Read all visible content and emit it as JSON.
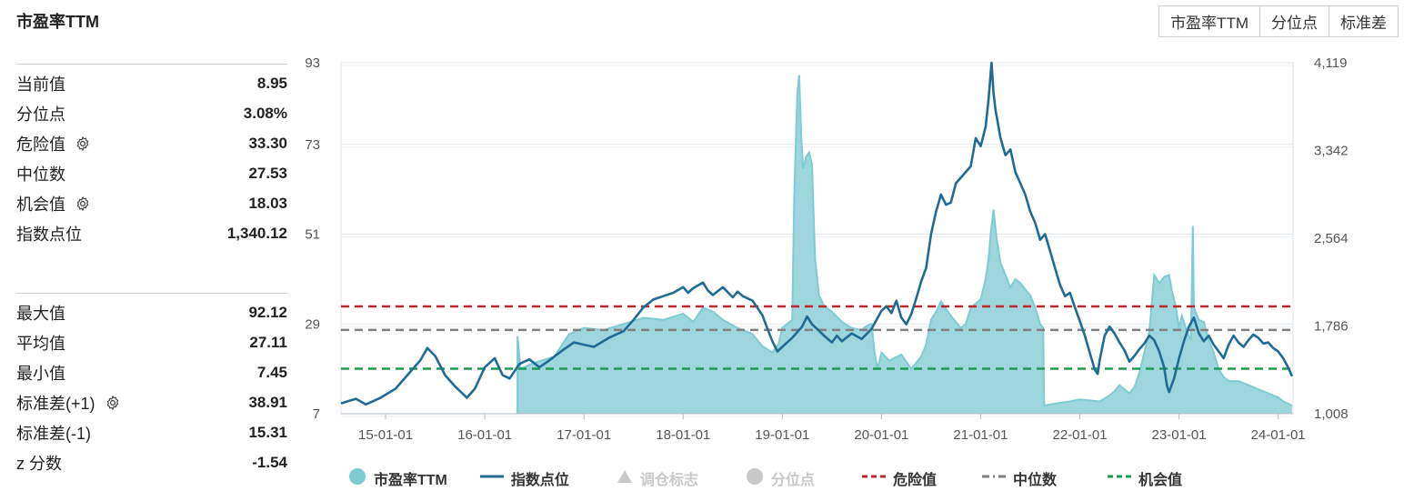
{
  "header": {
    "title": "市盈率TTM"
  },
  "toggles": [
    {
      "label": "市盈率TTM"
    },
    {
      "label": "分位点"
    },
    {
      "label": "标准差"
    }
  ],
  "stats_top": [
    {
      "label": "当前值",
      "value": "8.95",
      "gear": false
    },
    {
      "label": "分位点",
      "value": "3.08%",
      "gear": false
    },
    {
      "label": "危险值",
      "value": "33.30",
      "gear": true
    },
    {
      "label": "中位数",
      "value": "27.53",
      "gear": false
    },
    {
      "label": "机会值",
      "value": "18.03",
      "gear": true
    },
    {
      "label": "指数点位",
      "value": "1,340.12",
      "gear": false
    }
  ],
  "stats_bottom": [
    {
      "label": "最大值",
      "value": "92.12",
      "gear": false
    },
    {
      "label": "平均值",
      "value": "27.11",
      "gear": false
    },
    {
      "label": "最小值",
      "value": "7.45",
      "gear": false
    },
    {
      "label": "标准差(+1)",
      "value": "38.91",
      "gear": true
    },
    {
      "label": "标准差(-1)",
      "value": "15.31",
      "gear": false
    },
    {
      "label": "z 分数",
      "value": "-1.54",
      "gear": false
    }
  ],
  "legend": [
    {
      "label": "市盈率TTM",
      "kind": "circle",
      "color": "#7ecbd3",
      "dim": false
    },
    {
      "label": "指数点位",
      "kind": "line",
      "color": "#1f6b94",
      "dim": false
    },
    {
      "label": "调仓标志",
      "kind": "triangle",
      "color": "#c8c8c8",
      "dim": true
    },
    {
      "label": "分位点",
      "kind": "circle",
      "color": "#c8c8c8",
      "dim": true
    },
    {
      "label": "危险值",
      "kind": "dash",
      "color": "#c0272d",
      "dim": false
    },
    {
      "label": "中位数",
      "kind": "dashdot",
      "color": "#7f7f7f",
      "dim": false
    },
    {
      "label": "机会值",
      "kind": "dash",
      "color": "#1f9a54",
      "dim": false
    }
  ],
  "chart_data": {
    "type": "area",
    "x_ticks": [
      "15-01-01",
      "16-01-01",
      "17-01-01",
      "18-01-01",
      "19-01-01",
      "20-01-01",
      "21-01-01",
      "22-01-01",
      "23-01-01",
      "24-01-01"
    ],
    "y_left_ticks": [
      "93",
      "73",
      "51",
      "29",
      "7"
    ],
    "y_right_ticks": [
      "4,119",
      "3,342",
      "2,564",
      "1,786",
      "1,008"
    ],
    "y_left_range": [
      7,
      93
    ],
    "y_right_range": [
      1008,
      4119
    ],
    "x_range": [
      2014.55,
      2024.15
    ],
    "reference_lines": {
      "danger": 33.3,
      "median": 27.53,
      "opportunity": 18.03
    },
    "series": [
      {
        "name": "市盈率TTM",
        "axis": "left",
        "color": "#7ecbd3",
        "fill": "#9dd6dc",
        "points": [
          [
            2016.33,
            7.0
          ],
          [
            2016.33,
            26.0
          ],
          [
            2016.36,
            18.0
          ],
          [
            2016.5,
            19.5
          ],
          [
            2016.7,
            21.0
          ],
          [
            2016.85,
            26.5
          ],
          [
            2017.0,
            28.0
          ],
          [
            2017.2,
            27.5
          ],
          [
            2017.4,
            29.0
          ],
          [
            2017.6,
            30.5
          ],
          [
            2017.8,
            30.0
          ],
          [
            2018.0,
            31.5
          ],
          [
            2018.1,
            29.5
          ],
          [
            2018.2,
            33.0
          ],
          [
            2018.3,
            32.0
          ],
          [
            2018.4,
            30.0
          ],
          [
            2018.55,
            28.0
          ],
          [
            2018.7,
            26.5
          ],
          [
            2018.8,
            23.5
          ],
          [
            2018.9,
            22.0
          ],
          [
            2018.96,
            24.0
          ],
          [
            2019.0,
            28.0
          ],
          [
            2019.1,
            30.0
          ],
          [
            2019.12,
            60.0
          ],
          [
            2019.15,
            85.0
          ],
          [
            2019.17,
            90.0
          ],
          [
            2019.19,
            75.0
          ],
          [
            2019.21,
            67.0
          ],
          [
            2019.24,
            70.0
          ],
          [
            2019.27,
            71.0
          ],
          [
            2019.3,
            68.0
          ],
          [
            2019.33,
            45.0
          ],
          [
            2019.37,
            36.0
          ],
          [
            2019.42,
            33.5
          ],
          [
            2019.5,
            32.0
          ],
          [
            2019.6,
            29.5
          ],
          [
            2019.7,
            28.0
          ],
          [
            2019.8,
            27.5
          ],
          [
            2019.85,
            28.5
          ],
          [
            2019.9,
            29.0
          ],
          [
            2019.93,
            22.0
          ],
          [
            2019.96,
            18.0
          ],
          [
            2020.0,
            22.0
          ],
          [
            2020.08,
            20.0
          ],
          [
            2020.2,
            21.5
          ],
          [
            2020.3,
            18.0
          ],
          [
            2020.4,
            21.0
          ],
          [
            2020.45,
            24.0
          ],
          [
            2020.5,
            30.0
          ],
          [
            2020.55,
            32.0
          ],
          [
            2020.6,
            34.5
          ],
          [
            2020.7,
            31.0
          ],
          [
            2020.8,
            28.0
          ],
          [
            2020.85,
            29.0
          ],
          [
            2020.9,
            33.0
          ],
          [
            2021.0,
            35.0
          ],
          [
            2021.05,
            40.0
          ],
          [
            2021.08,
            45.0
          ],
          [
            2021.1,
            51.0
          ],
          [
            2021.13,
            57.0
          ],
          [
            2021.16,
            50.0
          ],
          [
            2021.2,
            44.0
          ],
          [
            2021.25,
            41.0
          ],
          [
            2021.3,
            38.0
          ],
          [
            2021.35,
            40.0
          ],
          [
            2021.4,
            39.0
          ],
          [
            2021.45,
            37.5
          ],
          [
            2021.5,
            36.0
          ],
          [
            2021.55,
            33.0
          ],
          [
            2021.6,
            29.0
          ],
          [
            2021.63,
            28.0
          ],
          [
            2021.64,
            9.0
          ],
          [
            2021.75,
            9.5
          ],
          [
            2021.9,
            10.0
          ],
          [
            2022.0,
            10.5
          ],
          [
            2022.2,
            10.0
          ],
          [
            2022.3,
            11.5
          ],
          [
            2022.35,
            12.5
          ],
          [
            2022.4,
            14.0
          ],
          [
            2022.45,
            13.0
          ],
          [
            2022.5,
            12.0
          ],
          [
            2022.55,
            13.5
          ],
          [
            2022.6,
            17.0
          ],
          [
            2022.7,
            27.0
          ],
          [
            2022.75,
            41.0
          ],
          [
            2022.8,
            39.0
          ],
          [
            2022.85,
            40.5
          ],
          [
            2022.9,
            41.0
          ],
          [
            2022.93,
            37.0
          ],
          [
            2022.97,
            33.0
          ],
          [
            2023.0,
            28.0
          ],
          [
            2023.03,
            31.0
          ],
          [
            2023.08,
            27.0
          ],
          [
            2023.12,
            25.0
          ],
          [
            2023.14,
            53.0
          ],
          [
            2023.15,
            33.0
          ],
          [
            2023.2,
            30.0
          ],
          [
            2023.25,
            29.5
          ],
          [
            2023.3,
            25.0
          ],
          [
            2023.35,
            22.0
          ],
          [
            2023.4,
            18.0
          ],
          [
            2023.45,
            16.0
          ],
          [
            2023.5,
            15.0
          ],
          [
            2023.6,
            15.0
          ],
          [
            2023.7,
            14.0
          ],
          [
            2023.8,
            13.0
          ],
          [
            2023.9,
            12.0
          ],
          [
            2024.0,
            11.0
          ],
          [
            2024.05,
            10.0
          ],
          [
            2024.1,
            9.5
          ],
          [
            2024.14,
            8.95
          ]
        ]
      },
      {
        "name": "指数点位",
        "axis": "right",
        "color": "#1f6b94",
        "points": [
          [
            2014.55,
            1100
          ],
          [
            2014.7,
            1140
          ],
          [
            2014.8,
            1090
          ],
          [
            2014.95,
            1150
          ],
          [
            2015.1,
            1230
          ],
          [
            2015.2,
            1330
          ],
          [
            2015.35,
            1480
          ],
          [
            2015.42,
            1590
          ],
          [
            2015.5,
            1520
          ],
          [
            2015.6,
            1350
          ],
          [
            2015.7,
            1250
          ],
          [
            2015.82,
            1150
          ],
          [
            2015.9,
            1230
          ],
          [
            2016.0,
            1420
          ],
          [
            2016.1,
            1500
          ],
          [
            2016.18,
            1350
          ],
          [
            2016.25,
            1320
          ],
          [
            2016.35,
            1450
          ],
          [
            2016.45,
            1490
          ],
          [
            2016.55,
            1420
          ],
          [
            2016.65,
            1480
          ],
          [
            2016.8,
            1580
          ],
          [
            2016.9,
            1640
          ],
          [
            2017.0,
            1620
          ],
          [
            2017.1,
            1600
          ],
          [
            2017.25,
            1680
          ],
          [
            2017.4,
            1740
          ],
          [
            2017.5,
            1840
          ],
          [
            2017.6,
            1950
          ],
          [
            2017.7,
            2020
          ],
          [
            2017.8,
            2050
          ],
          [
            2017.9,
            2080
          ],
          [
            2018.0,
            2130
          ],
          [
            2018.05,
            2080
          ],
          [
            2018.1,
            2120
          ],
          [
            2018.2,
            2170
          ],
          [
            2018.25,
            2100
          ],
          [
            2018.3,
            2060
          ],
          [
            2018.4,
            2130
          ],
          [
            2018.5,
            2040
          ],
          [
            2018.55,
            2090
          ],
          [
            2018.6,
            2050
          ],
          [
            2018.7,
            2010
          ],
          [
            2018.8,
            1880
          ],
          [
            2018.85,
            1760
          ],
          [
            2018.9,
            1650
          ],
          [
            2018.95,
            1560
          ],
          [
            2019.0,
            1600
          ],
          [
            2019.1,
            1680
          ],
          [
            2019.2,
            1780
          ],
          [
            2019.25,
            1870
          ],
          [
            2019.3,
            1800
          ],
          [
            2019.35,
            1760
          ],
          [
            2019.42,
            1700
          ],
          [
            2019.5,
            1640
          ],
          [
            2019.55,
            1700
          ],
          [
            2019.6,
            1650
          ],
          [
            2019.7,
            1720
          ],
          [
            2019.8,
            1670
          ],
          [
            2019.9,
            1760
          ],
          [
            2020.0,
            1920
          ],
          [
            2020.05,
            1960
          ],
          [
            2020.1,
            1900
          ],
          [
            2020.15,
            2010
          ],
          [
            2020.2,
            1860
          ],
          [
            2020.25,
            1800
          ],
          [
            2020.3,
            1890
          ],
          [
            2020.35,
            2030
          ],
          [
            2020.4,
            2180
          ],
          [
            2020.45,
            2300
          ],
          [
            2020.5,
            2600
          ],
          [
            2020.55,
            2800
          ],
          [
            2020.6,
            2950
          ],
          [
            2020.65,
            2860
          ],
          [
            2020.7,
            2880
          ],
          [
            2020.75,
            3050
          ],
          [
            2020.8,
            3100
          ],
          [
            2020.9,
            3200
          ],
          [
            2020.95,
            3450
          ],
          [
            2021.0,
            3380
          ],
          [
            2021.05,
            3550
          ],
          [
            2021.08,
            3800
          ],
          [
            2021.11,
            4119
          ],
          [
            2021.13,
            3850
          ],
          [
            2021.15,
            3700
          ],
          [
            2021.2,
            3450
          ],
          [
            2021.25,
            3300
          ],
          [
            2021.3,
            3350
          ],
          [
            2021.35,
            3150
          ],
          [
            2021.4,
            3050
          ],
          [
            2021.45,
            2950
          ],
          [
            2021.5,
            2800
          ],
          [
            2021.55,
            2700
          ],
          [
            2021.6,
            2550
          ],
          [
            2021.65,
            2600
          ],
          [
            2021.7,
            2450
          ],
          [
            2021.75,
            2300
          ],
          [
            2021.8,
            2150
          ],
          [
            2021.85,
            2050
          ],
          [
            2021.9,
            2080
          ],
          [
            2021.95,
            1950
          ],
          [
            2022.0,
            1830
          ],
          [
            2022.05,
            1700
          ],
          [
            2022.1,
            1550
          ],
          [
            2022.15,
            1400
          ],
          [
            2022.18,
            1360
          ],
          [
            2022.2,
            1480
          ],
          [
            2022.25,
            1700
          ],
          [
            2022.3,
            1780
          ],
          [
            2022.35,
            1720
          ],
          [
            2022.4,
            1640
          ],
          [
            2022.45,
            1570
          ],
          [
            2022.5,
            1470
          ],
          [
            2022.55,
            1520
          ],
          [
            2022.6,
            1580
          ],
          [
            2022.65,
            1630
          ],
          [
            2022.7,
            1700
          ],
          [
            2022.75,
            1660
          ],
          [
            2022.8,
            1560
          ],
          [
            2022.85,
            1420
          ],
          [
            2022.88,
            1250
          ],
          [
            2022.9,
            1200
          ],
          [
            2022.95,
            1320
          ],
          [
            2023.0,
            1500
          ],
          [
            2023.05,
            1650
          ],
          [
            2023.1,
            1780
          ],
          [
            2023.15,
            1860
          ],
          [
            2023.2,
            1720
          ],
          [
            2023.25,
            1650
          ],
          [
            2023.3,
            1700
          ],
          [
            2023.35,
            1620
          ],
          [
            2023.4,
            1560
          ],
          [
            2023.45,
            1500
          ],
          [
            2023.5,
            1620
          ],
          [
            2023.55,
            1700
          ],
          [
            2023.6,
            1640
          ],
          [
            2023.65,
            1600
          ],
          [
            2023.7,
            1660
          ],
          [
            2023.75,
            1710
          ],
          [
            2023.8,
            1680
          ],
          [
            2023.85,
            1630
          ],
          [
            2023.9,
            1640
          ],
          [
            2023.95,
            1590
          ],
          [
            2024.0,
            1560
          ],
          [
            2024.05,
            1500
          ],
          [
            2024.1,
            1420
          ],
          [
            2024.14,
            1340
          ]
        ]
      }
    ]
  }
}
